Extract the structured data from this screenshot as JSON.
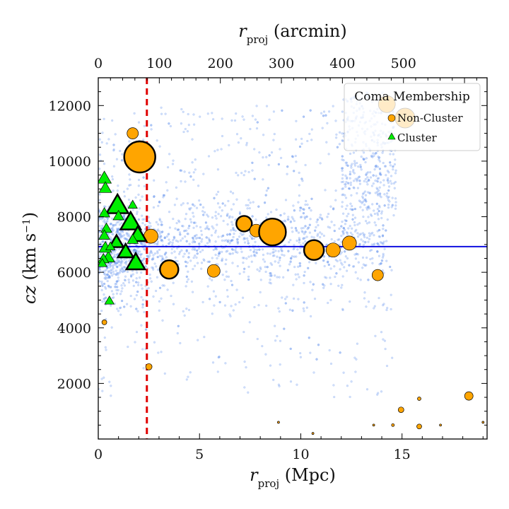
{
  "chart_data": {
    "type": "scatter",
    "xlabel_bottom": {
      "main": "r",
      "sub": "proj",
      "units": " (Mpc)"
    },
    "xlabel_top": {
      "main": "r",
      "sub": "proj",
      "units": " (arcmin)"
    },
    "ylabel": {
      "main": "cz",
      "units_prefix": " (km s",
      "units_exp": "−1",
      "units_suffix": ")"
    },
    "xlim": [
      0,
      19.2
    ],
    "ylim": [
      0,
      13000
    ],
    "top_xlim": [
      0,
      637
    ],
    "x_ticks": [
      0,
      5,
      10,
      15
    ],
    "y_ticks": [
      2000,
      4000,
      6000,
      8000,
      10000,
      12000
    ],
    "top_ticks": [
      0,
      100,
      200,
      300,
      400,
      500
    ],
    "cluster_velocity_line": 6925,
    "radius_cut_line": 2.4,
    "colors": {
      "background_points": "#6495ed",
      "non_cluster": "#ffa500",
      "cluster": "#00ee00",
      "vline": "#e00000",
      "hline": "#0000dd"
    },
    "legend": {
      "title": "Coma Membership",
      "entries": [
        {
          "label": "Non-Cluster",
          "marker": "circle"
        },
        {
          "label": "Cluster",
          "marker": "triangle"
        }
      ],
      "placement": "top-right"
    },
    "series": [
      {
        "name": "Non-Cluster",
        "points": [
          {
            "x": 2.05,
            "y": 10150,
            "s": 44,
            "bold": true
          },
          {
            "x": 1.7,
            "y": 11000,
            "s": 16
          },
          {
            "x": 2.6,
            "y": 7300,
            "s": 20
          },
          {
            "x": 3.5,
            "y": 6100,
            "s": 26,
            "bold": true
          },
          {
            "x": 5.7,
            "y": 6050,
            "s": 18
          },
          {
            "x": 7.2,
            "y": 7750,
            "s": 22,
            "bold": true
          },
          {
            "x": 7.8,
            "y": 7500,
            "s": 18
          },
          {
            "x": 8.6,
            "y": 7450,
            "s": 38,
            "bold": true
          },
          {
            "x": 10.65,
            "y": 6800,
            "s": 28,
            "bold": true
          },
          {
            "x": 11.6,
            "y": 6800,
            "s": 20
          },
          {
            "x": 12.4,
            "y": 7050,
            "s": 20
          },
          {
            "x": 13.8,
            "y": 5900,
            "s": 16
          },
          {
            "x": 14.25,
            "y": 12050,
            "s": 24
          },
          {
            "x": 15.15,
            "y": 11550,
            "s": 28
          },
          {
            "x": 0.3,
            "y": 4200,
            "s": 7
          },
          {
            "x": 2.5,
            "y": 2600,
            "s": 9
          },
          {
            "x": 18.3,
            "y": 1550,
            "s": 12
          },
          {
            "x": 14.95,
            "y": 1050,
            "s": 8
          },
          {
            "x": 15.85,
            "y": 450,
            "s": 7
          },
          {
            "x": 15.85,
            "y": 1450,
            "s": 5
          },
          {
            "x": 14.55,
            "y": 500,
            "s": 4
          },
          {
            "x": 10.6,
            "y": 200,
            "s": 3
          },
          {
            "x": 8.9,
            "y": 600,
            "s": 3
          },
          {
            "x": 13.6,
            "y": 500,
            "s": 3
          },
          {
            "x": 16.9,
            "y": 500,
            "s": 3
          },
          {
            "x": 19.0,
            "y": 600,
            "s": 3
          }
        ]
      },
      {
        "name": "Cluster",
        "points": [
          {
            "x": 0.95,
            "y": 8350,
            "s": 28,
            "bold": true
          },
          {
            "x": 1.6,
            "y": 7750,
            "s": 26,
            "bold": true
          },
          {
            "x": 1.95,
            "y": 7300,
            "s": 22,
            "bold": true
          },
          {
            "x": 1.85,
            "y": 6300,
            "s": 24,
            "bold": true
          },
          {
            "x": 1.35,
            "y": 6700,
            "s": 20,
            "bold": true
          },
          {
            "x": 0.9,
            "y": 7050,
            "s": 18,
            "bold": true
          },
          {
            "x": 0.5,
            "y": 6500,
            "s": 16
          },
          {
            "x": 0.3,
            "y": 9350,
            "s": 18
          },
          {
            "x": 0.35,
            "y": 9000,
            "s": 16
          },
          {
            "x": 0.3,
            "y": 8100,
            "s": 14
          },
          {
            "x": 0.4,
            "y": 7550,
            "s": 14
          },
          {
            "x": 0.3,
            "y": 7300,
            "s": 14
          },
          {
            "x": 0.35,
            "y": 6850,
            "s": 16
          },
          {
            "x": 0.25,
            "y": 6450,
            "s": 14
          },
          {
            "x": 1.0,
            "y": 8000,
            "s": 14
          },
          {
            "x": 1.7,
            "y": 8400,
            "s": 12
          },
          {
            "x": 0.55,
            "y": 4950,
            "s": 12
          },
          {
            "x": 0.6,
            "y": 6900,
            "s": 12
          },
          {
            "x": 1.7,
            "y": 7150,
            "s": 14
          },
          {
            "x": 0.2,
            "y": 6300,
            "s": 12
          }
        ]
      }
    ]
  }
}
